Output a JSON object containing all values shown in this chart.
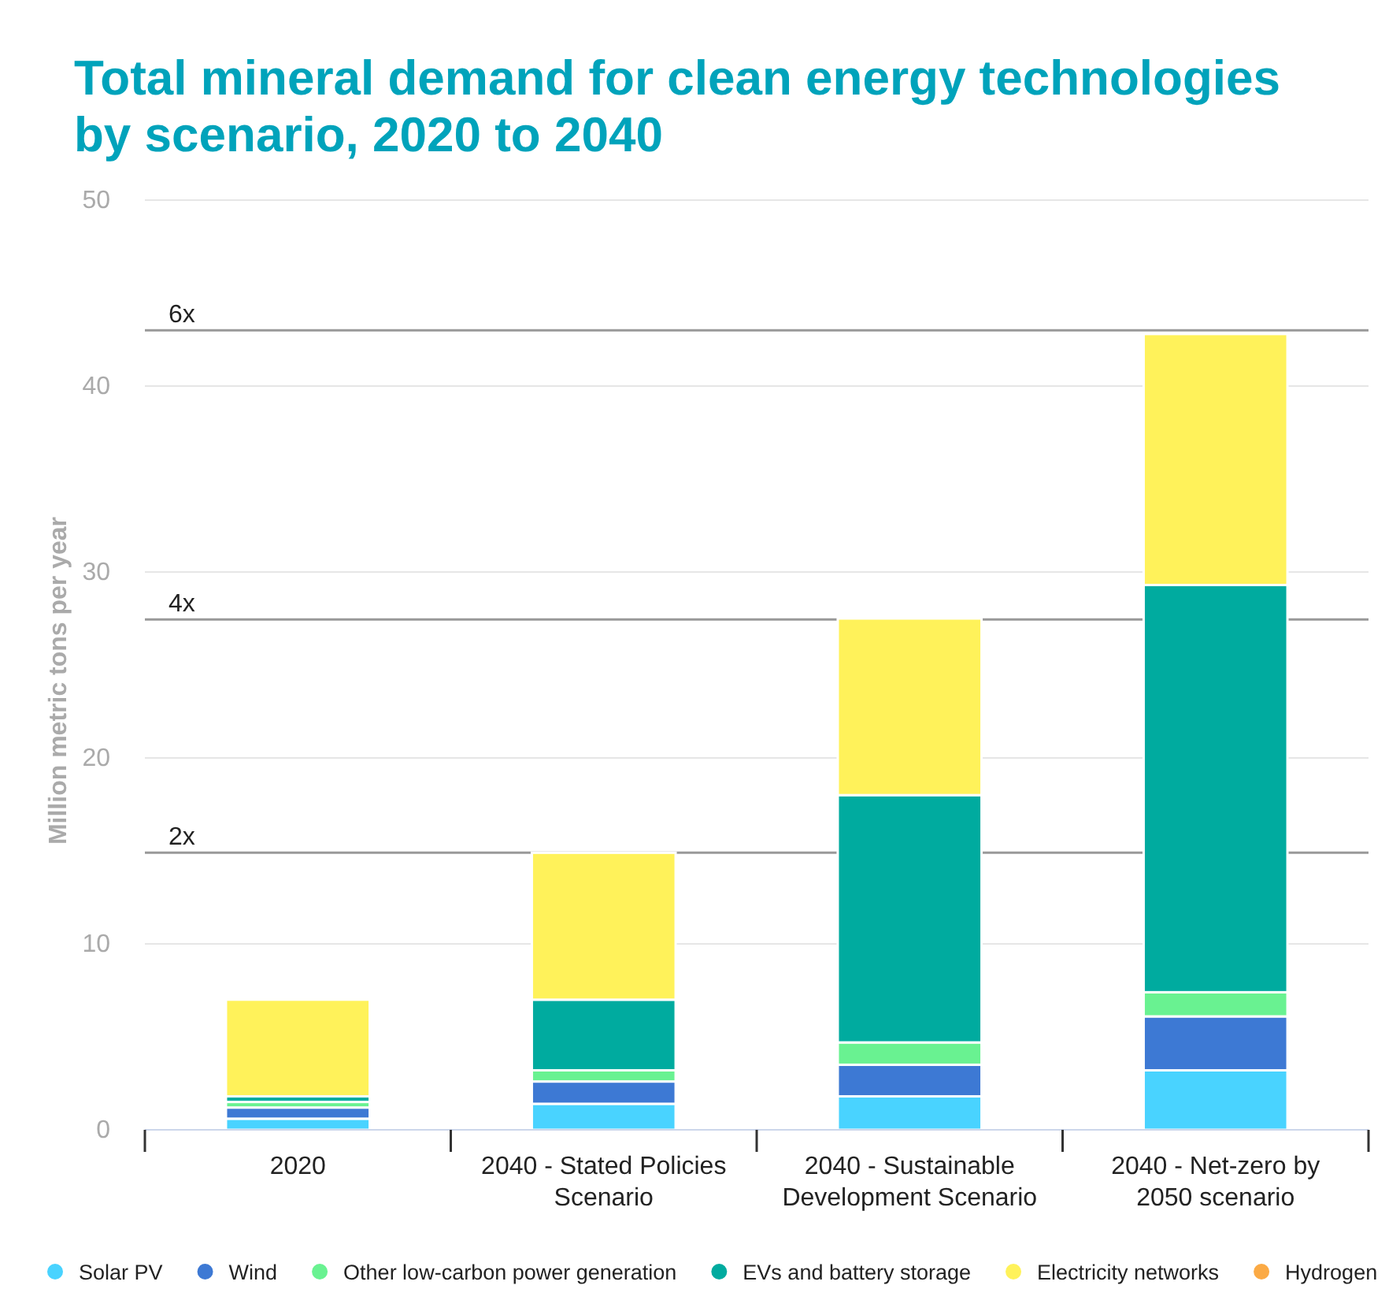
{
  "chart_data": {
    "type": "bar",
    "title": "Total mineral demand for clean energy technologies by scenario, 2020 to 2040",
    "ylabel": "Million metric tons per year",
    "categories": [
      "2020",
      "2040 - Stated Policies Scenario",
      "2040 - Sustainable Development Scenario",
      "2040 - Net-zero by 2050 scenario"
    ],
    "stacked": true,
    "series": [
      {
        "name": "Solar PV",
        "color": "#49d3ff",
        "values": [
          0.6,
          1.4,
          1.8,
          3.2
        ]
      },
      {
        "name": "Wind",
        "color": "#3d79d4",
        "values": [
          0.6,
          1.2,
          1.7,
          2.9
        ]
      },
      {
        "name": "Other low-carbon power generation",
        "color": "#69f291",
        "values": [
          0.3,
          0.6,
          1.2,
          1.3
        ]
      },
      {
        "name": "EVs and battery storage",
        "color": "#00ab9f",
        "values": [
          0.3,
          3.8,
          13.3,
          21.9
        ]
      },
      {
        "name": "Electricity networks",
        "color": "#fff25a",
        "values": [
          5.2,
          7.9,
          9.5,
          13.5
        ]
      },
      {
        "name": "Hydrogen",
        "color": "#fbaa45",
        "values": [
          0,
          0,
          0,
          0
        ]
      }
    ],
    "ylim": [
      0,
      50
    ],
    "yticks": [
      0,
      10,
      20,
      30,
      40,
      50
    ],
    "grid": "y",
    "legend": "bottom",
    "ref_lines": [
      {
        "axis": "y",
        "value": 14.9,
        "label": "2x",
        "color": "#999999"
      },
      {
        "axis": "y",
        "value": 27.45,
        "label": "4x",
        "color": "#999999"
      },
      {
        "axis": "y",
        "value": 43.0,
        "label": "6x",
        "color": "#999999"
      }
    ]
  }
}
